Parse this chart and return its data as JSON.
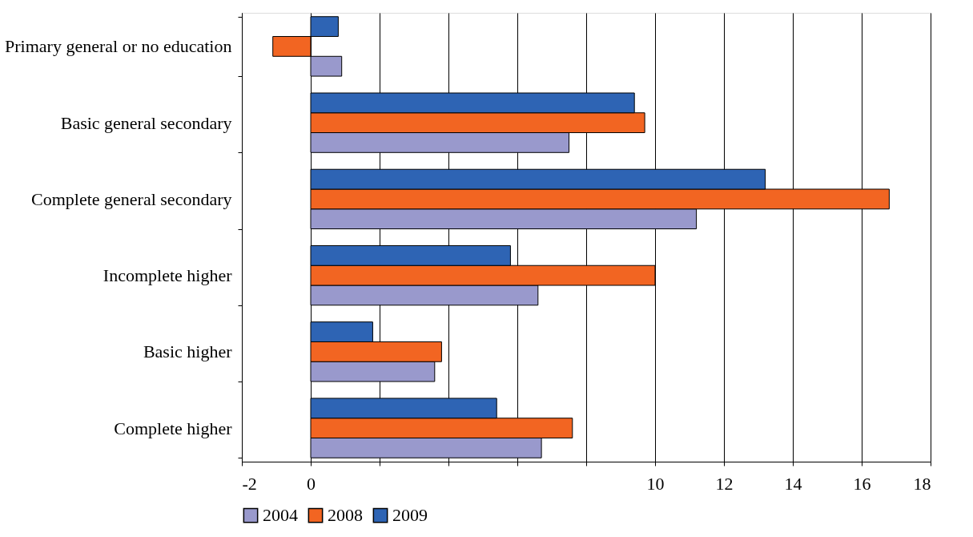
{
  "chart_data": {
    "type": "bar",
    "orientation": "horizontal",
    "categories": [
      "Primary general or no education",
      "Basic general secondary",
      "Complete general secondary",
      "Incomplete higher",
      "Basic higher",
      "Complete higher"
    ],
    "series": [
      {
        "name": "2004",
        "color": "#9999cc",
        "values": [
          0.9,
          7.5,
          11.2,
          6.6,
          3.6,
          6.7
        ]
      },
      {
        "name": "2008",
        "color": "#f26522",
        "values": [
          -1.1,
          9.7,
          16.8,
          10.0,
          3.8,
          7.6
        ]
      },
      {
        "name": "2009",
        "color": "#2e64b4",
        "values": [
          0.8,
          9.4,
          13.2,
          5.8,
          1.8,
          5.4
        ]
      }
    ],
    "xlim": [
      -2,
      18
    ],
    "xticks": [
      -2,
      0,
      {
        "value": 2,
        "label": null
      },
      {
        "value": 4,
        "label": null
      },
      {
        "value": 6,
        "label": null
      },
      {
        "value": 8,
        "label": null
      },
      10,
      12,
      14,
      16,
      18
    ],
    "grid": "x",
    "legend": "bottom"
  }
}
